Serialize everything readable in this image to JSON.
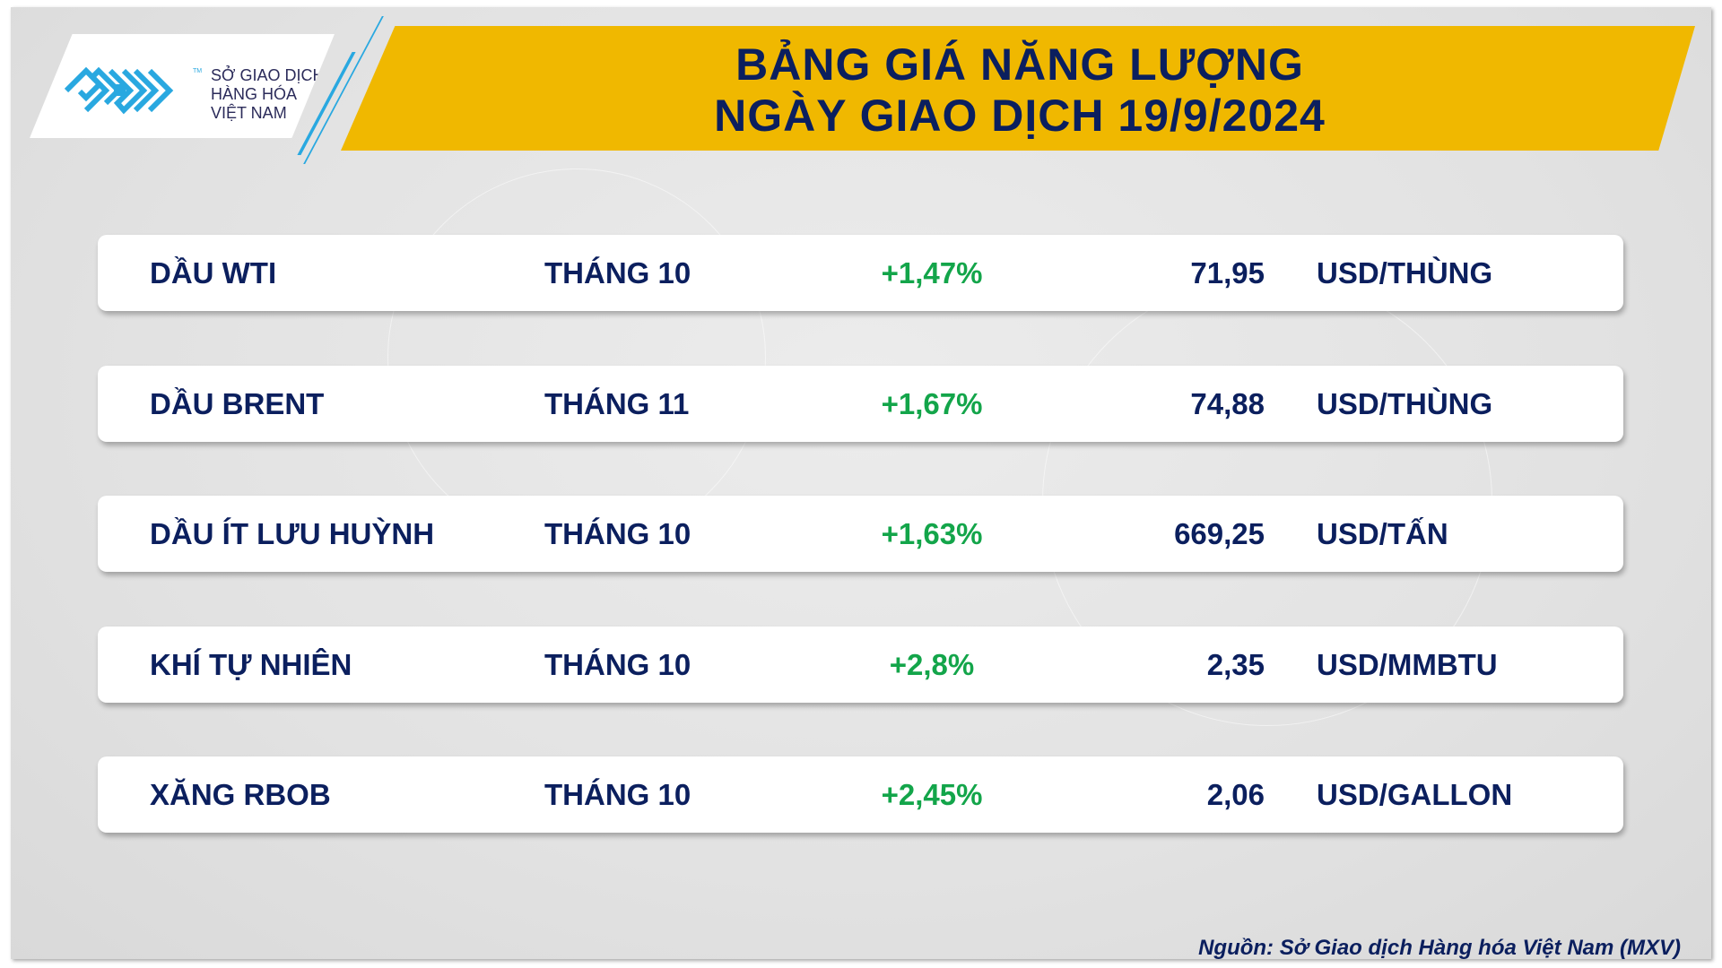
{
  "header": {
    "title_line1": "BẢNG GIÁ NĂNG LƯỢNG",
    "title_line2": "NGÀY GIAO DỊCH 19/9/2024",
    "banner_color": "#f0b800"
  },
  "logo": {
    "line1": "SỞ GIAO DỊCH",
    "line2": "HÀNG HÓA",
    "line3": "VIỆT NAM",
    "tm": "TM",
    "brand_color": "#29a8e0"
  },
  "rows": [
    {
      "name": "DẦU WTI",
      "month": "THÁNG 10",
      "change": "+1,47%",
      "price": "71,95",
      "unit": "USD/THÙNG"
    },
    {
      "name": "DẦU BRENT",
      "month": "THÁNG 11",
      "change": "+1,67%",
      "price": "74,88",
      "unit": "USD/THÙNG"
    },
    {
      "name": "DẦU ÍT LƯU HUỲNH",
      "month": "THÁNG 10",
      "change": "+1,63%",
      "price": "669,25",
      "unit": "USD/TẤN"
    },
    {
      "name": "KHÍ TỰ NHIÊN",
      "month": "THÁNG 10",
      "change": "+2,8%",
      "price": "2,35",
      "unit": "USD/MMBTU"
    },
    {
      "name": "XĂNG RBOB",
      "month": "THÁNG 10",
      "change": "+2,45%",
      "price": "2,06",
      "unit": "USD/GALLON"
    }
  ],
  "colors": {
    "text": "#0b1f5e",
    "positive": "#13a54a"
  },
  "footer": {
    "source": "Nguồn: Sở Giao dịch Hàng hóa Việt Nam (MXV)"
  }
}
